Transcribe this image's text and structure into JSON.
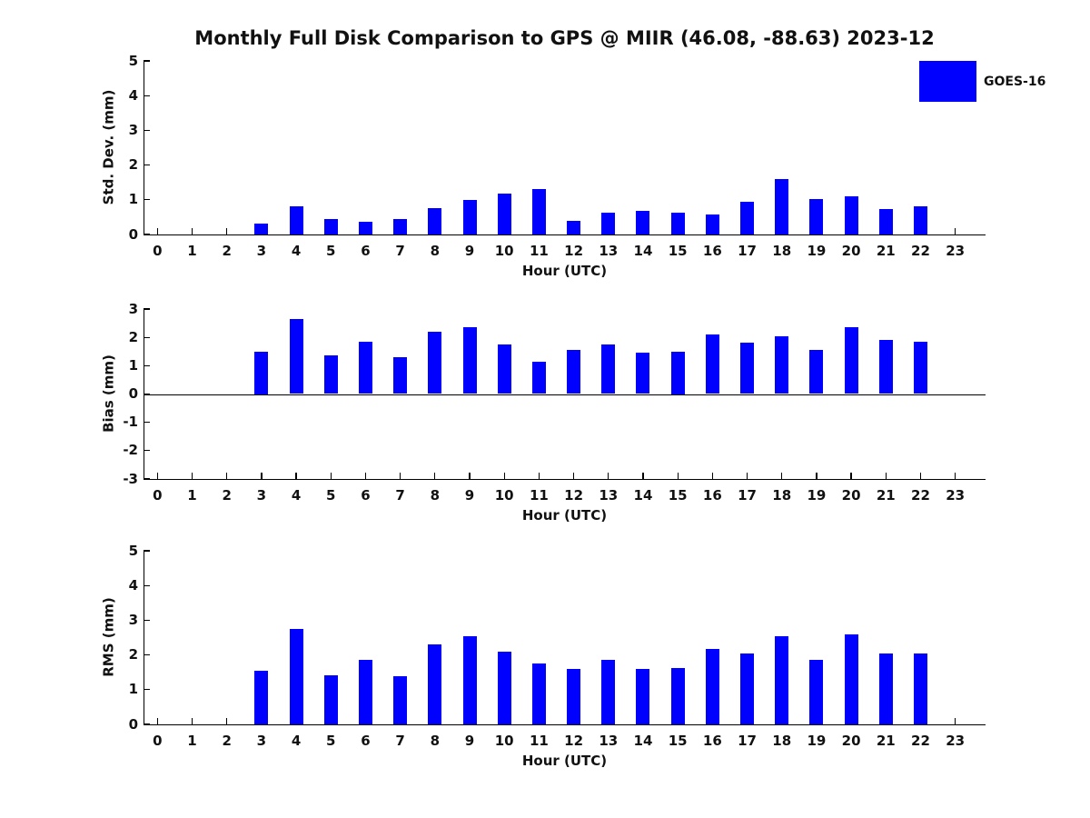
{
  "title": "Monthly Full Disk Comparison to GPS @ MIIR (46.08, -88.63) 2023-12",
  "legend": {
    "label": "GOES-16",
    "color": "#0000ff",
    "position": "top-right"
  },
  "colors": {
    "bar": "#0000ff",
    "axis": "#000000",
    "text": "#111111",
    "background": "#ffffff"
  },
  "xlabel": "Hour (UTC)",
  "chart_data": [
    {
      "type": "bar",
      "title": "",
      "ylabel": "Std. Dev. (mm)",
      "xlabel": "Hour (UTC)",
      "ylim": [
        0,
        5
      ],
      "yticks": [
        0,
        1,
        2,
        3,
        4,
        5
      ],
      "grid": false,
      "legend_entries": [
        "GOES-16"
      ],
      "categories": [
        0,
        1,
        2,
        3,
        4,
        5,
        6,
        7,
        8,
        9,
        10,
        11,
        12,
        13,
        14,
        15,
        16,
        17,
        18,
        19,
        20,
        21,
        22,
        23
      ],
      "values": [
        0,
        0,
        0,
        0.32,
        0.8,
        0.45,
        0.37,
        0.45,
        0.77,
        1.0,
        1.18,
        1.3,
        0.4,
        0.62,
        0.68,
        0.62,
        0.58,
        0.95,
        1.6,
        1.02,
        1.1,
        0.72,
        0.82,
        0
      ]
    },
    {
      "type": "bar",
      "title": "",
      "ylabel": "Bias (mm)",
      "xlabel": "Hour (UTC)",
      "ylim": [
        -3,
        3
      ],
      "yticks": [
        -3,
        -2,
        -1,
        0,
        1,
        2,
        3
      ],
      "grid": false,
      "legend_entries": [
        "GOES-16"
      ],
      "categories": [
        0,
        1,
        2,
        3,
        4,
        5,
        6,
        7,
        8,
        9,
        10,
        11,
        12,
        13,
        14,
        15,
        16,
        17,
        18,
        19,
        20,
        21,
        22,
        23
      ],
      "values": [
        0,
        0,
        0,
        1.5,
        2.65,
        1.35,
        1.85,
        1.3,
        2.2,
        2.35,
        1.75,
        1.15,
        1.55,
        1.75,
        1.45,
        1.5,
        2.1,
        1.8,
        2.05,
        1.55,
        2.35,
        1.9,
        1.85,
        0
      ]
    },
    {
      "type": "bar",
      "title": "",
      "ylabel": "RMS (mm)",
      "xlabel": "Hour (UTC)",
      "ylim": [
        0,
        5
      ],
      "yticks": [
        0,
        1,
        2,
        3,
        4,
        5
      ],
      "grid": false,
      "legend_entries": [
        "GOES-16"
      ],
      "categories": [
        0,
        1,
        2,
        3,
        4,
        5,
        6,
        7,
        8,
        9,
        10,
        11,
        12,
        13,
        14,
        15,
        16,
        17,
        18,
        19,
        20,
        21,
        22,
        23
      ],
      "values": [
        0,
        0,
        0,
        1.55,
        2.75,
        1.42,
        1.87,
        1.38,
        2.3,
        2.53,
        2.1,
        1.75,
        1.6,
        1.85,
        1.6,
        1.63,
        2.18,
        2.05,
        2.55,
        1.85,
        2.6,
        2.05,
        2.05,
        0
      ]
    }
  ]
}
